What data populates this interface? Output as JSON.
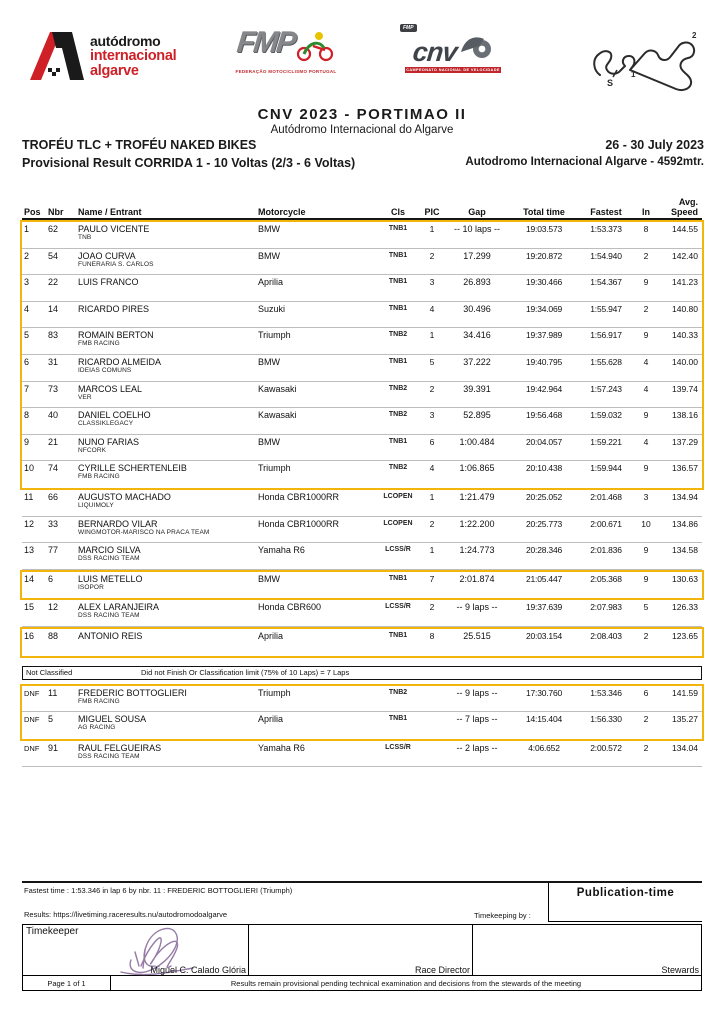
{
  "colors": {
    "highlight_yellow": "#f2b50c",
    "brand_red": "#cf2027",
    "logo_gray": "#85878a",
    "cnv_slate": "#3f434a",
    "signature_purple": "#8a6d9c"
  },
  "header": {
    "logos": {
      "algarve": {
        "line1": "autódromo",
        "line2": "internacional",
        "line3": "algarve"
      },
      "fmp": {
        "text": "FMP",
        "sub": "FEDERAÇÃO MOTOCICLISMO PORTUGAL"
      },
      "cnv": {
        "tag": "FMP",
        "text": "cnv",
        "sub": "CAMPEONATO NACIONAL DE VELOCIDADE"
      },
      "track": {
        "start": "S",
        "t1": "1",
        "t2": "2"
      }
    },
    "title": "CNV 2023 - PORTIMAO II",
    "subtitle": "Autódromo Internacional do Algarve",
    "event_left1": "TROFÉU TLC +  TROFÉU NAKED BIKES",
    "event_right1": "26 - 30 July 2023",
    "event_left2": "Provisional Result CORRIDA 1 - 10 Voltas (2/3 - 6 Voltas)",
    "event_right2": "Autodromo Internacional Algarve - 4592mtr."
  },
  "table": {
    "columns": {
      "pos": "Pos",
      "nbr": "Nbr",
      "name": "Name / Entrant",
      "moto": "Motorcycle",
      "cls": "Cls",
      "pic": "PIC",
      "gap": "Gap",
      "total": "Total time",
      "fastest": "Fastest",
      "lap": "In",
      "avg1": "Avg.",
      "avg2": "Speed"
    },
    "classified_segments": [
      {
        "highlight": true,
        "rows": [
          {
            "pos": "1",
            "nbr": "62",
            "name": "PAULO VICENTE",
            "entrant": "TNB",
            "moto": "BMW",
            "cls": "TNB1",
            "pic": "1",
            "gap": "-- 10 laps --",
            "total": "19:03.573",
            "fastest": "1:53.373",
            "lap": "8",
            "speed": "144.55"
          },
          {
            "pos": "2",
            "nbr": "54",
            "name": "JOAO CURVA",
            "entrant": "FUNERARIA S. CARLOS",
            "moto": "BMW",
            "cls": "TNB1",
            "pic": "2",
            "gap": "17.299",
            "total": "19:20.872",
            "fastest": "1:54.940",
            "lap": "2",
            "speed": "142.40"
          },
          {
            "pos": "3",
            "nbr": "22",
            "name": "LUIS FRANCO",
            "entrant": "",
            "moto": "Aprilia",
            "cls": "TNB1",
            "pic": "3",
            "gap": "26.893",
            "total": "19:30.466",
            "fastest": "1:54.367",
            "lap": "9",
            "speed": "141.23"
          },
          {
            "pos": "4",
            "nbr": "14",
            "name": "RICARDO PIRES",
            "entrant": "",
            "moto": "Suzuki",
            "cls": "TNB1",
            "pic": "4",
            "gap": "30.496",
            "total": "19:34.069",
            "fastest": "1:55.947",
            "lap": "2",
            "speed": "140.80"
          },
          {
            "pos": "5",
            "nbr": "83",
            "name": "ROMAIN BERTON",
            "entrant": "FMB RACING",
            "moto": "Triumph",
            "cls": "TNB2",
            "pic": "1",
            "gap": "34.416",
            "total": "19:37.989",
            "fastest": "1:56.917",
            "lap": "9",
            "speed": "140.33"
          },
          {
            "pos": "6",
            "nbr": "31",
            "name": "RICARDO ALMEIDA",
            "entrant": "IDEIAS COMUNS",
            "moto": "BMW",
            "cls": "TNB1",
            "pic": "5",
            "gap": "37.222",
            "total": "19:40.795",
            "fastest": "1:55.628",
            "lap": "4",
            "speed": "140.00"
          },
          {
            "pos": "7",
            "nbr": "73",
            "name": "MARCOS LEAL",
            "entrant": "VER",
            "moto": "Kawasaki",
            "cls": "TNB2",
            "pic": "2",
            "gap": "39.391",
            "total": "19:42.964",
            "fastest": "1:57.243",
            "lap": "4",
            "speed": "139.74"
          },
          {
            "pos": "8",
            "nbr": "40",
            "name": "DANIEL COELHO",
            "entrant": "CLASSIKLEGACY",
            "moto": "Kawasaki",
            "cls": "TNB2",
            "pic": "3",
            "gap": "52.895",
            "total": "19:56.468",
            "fastest": "1:59.032",
            "lap": "9",
            "speed": "138.16"
          },
          {
            "pos": "9",
            "nbr": "21",
            "name": "NUNO FARIAS",
            "entrant": "NFCORK",
            "moto": "BMW",
            "cls": "TNB1",
            "pic": "6",
            "gap": "1:00.484",
            "total": "20:04.057",
            "fastest": "1:59.221",
            "lap": "4",
            "speed": "137.29"
          },
          {
            "pos": "10",
            "nbr": "74",
            "name": "CYRILLE SCHERTENLEIB",
            "entrant": "FMB RACING",
            "moto": "Triumph",
            "cls": "TNB2",
            "pic": "4",
            "gap": "1:06.865",
            "total": "20:10.438",
            "fastest": "1:59.944",
            "lap": "9",
            "speed": "136.57"
          }
        ]
      },
      {
        "highlight": false,
        "rows": [
          {
            "pos": "11",
            "nbr": "66",
            "name": "AUGUSTO MACHADO",
            "entrant": "LIQUIMOLY",
            "moto": "Honda CBR1000RR",
            "cls": "LCOPEN",
            "pic": "1",
            "gap": "1:21.479",
            "total": "20:25.052",
            "fastest": "2:01.468",
            "lap": "3",
            "speed": "134.94"
          },
          {
            "pos": "12",
            "nbr": "33",
            "name": "BERNARDO VILAR",
            "entrant": "WINGMOTOR-MARISCO NA PRACA TEAM",
            "moto": "Honda CBR1000RR",
            "cls": "LCOPEN",
            "pic": "2",
            "gap": "1:22.200",
            "total": "20:25.773",
            "fastest": "2:00.671",
            "lap": "10",
            "speed": "134.86"
          },
          {
            "pos": "13",
            "nbr": "77",
            "name": "MARCIO SILVA",
            "entrant": "DSS RACING TEAM",
            "moto": "Yamaha R6",
            "cls": "LCSS/R",
            "pic": "1",
            "gap": "1:24.773",
            "total": "20:28.346",
            "fastest": "2:01.836",
            "lap": "9",
            "speed": "134.58"
          }
        ]
      },
      {
        "highlight": true,
        "rows": [
          {
            "pos": "14",
            "nbr": "6",
            "name": "LUIS METELLO",
            "entrant": "ISOPOR",
            "moto": "BMW",
            "cls": "TNB1",
            "pic": "7",
            "gap": "2:01.874",
            "total": "21:05.447",
            "fastest": "2:05.368",
            "lap": "9",
            "speed": "130.63"
          }
        ]
      },
      {
        "highlight": false,
        "rows": [
          {
            "pos": "15",
            "nbr": "12",
            "name": "ALEX LARANJEIRA",
            "entrant": "DSS RACING TEAM",
            "moto": "Honda CBR600",
            "cls": "LCSS/R",
            "pic": "2",
            "gap": "-- 9 laps --",
            "total": "19:37.639",
            "fastest": "2:07.983",
            "lap": "5",
            "speed": "126.33"
          }
        ]
      },
      {
        "highlight": true,
        "rows": [
          {
            "pos": "16",
            "nbr": "88",
            "name": "ANTONIO REIS",
            "entrant": "",
            "moto": "Aprilia",
            "cls": "TNB1",
            "pic": "8",
            "gap": "25.515",
            "total": "20:03.154",
            "fastest": "2:08.403",
            "lap": "2",
            "speed": "123.65"
          }
        ]
      }
    ],
    "not_classified": {
      "label": "Not Classified",
      "note": "Did not Finish Or Classification limit (75% of 10 Laps) = 7 Laps"
    },
    "dnf_segments": [
      {
        "highlight": true,
        "rows": [
          {
            "pos": "DNF",
            "nbr": "11",
            "name": "FREDERIC BOTTOGLIERI",
            "entrant": "FMB RACING",
            "moto": "Triumph",
            "cls": "TNB2",
            "pic": "",
            "gap": "-- 9 laps --",
            "total": "17:30.760",
            "fastest": "1:53.346",
            "lap": "6",
            "speed": "141.59"
          },
          {
            "pos": "DNF",
            "nbr": "5",
            "name": "MIGUEL SOUSA",
            "entrant": "AG RACING",
            "moto": "Aprilia",
            "cls": "TNB1",
            "pic": "",
            "gap": "-- 7 laps --",
            "total": "14:15.404",
            "fastest": "1:56.330",
            "lap": "2",
            "speed": "135.27"
          }
        ]
      },
      {
        "highlight": false,
        "rows": [
          {
            "pos": "DNF",
            "nbr": "91",
            "name": "RAUL FELGUEIRAS",
            "entrant": "DSS RACING TEAM",
            "moto": "Yamaha R6",
            "cls": "LCSS/R",
            "pic": "",
            "gap": "-- 2 laps --",
            "total": "4:06.652",
            "fastest": "2:00.572",
            "lap": "2",
            "speed": "134.04"
          }
        ]
      }
    ]
  },
  "footer": {
    "fastest_line": "Fastest time :  1:53.346  in lap  6  by  nbr. 11 : FREDERIC BOTTOGLIERI (Triumph)",
    "publication": "Publication-time",
    "results_label": "Results:",
    "results_url": "https://livetiming.raceresults.nu/autodromodoalgarve",
    "timekeeping_by": "Timekeeping by  :",
    "timekeeper_label": "Timekeeper",
    "timekeeper_name": "Miguel C. Calado Glória",
    "race_director": "Race Director",
    "stewards": "Stewards",
    "page": "Page 1 of 1",
    "disclaimer": "Results remain provisional pending technical examination and decisions from the stewards of the meeting"
  }
}
